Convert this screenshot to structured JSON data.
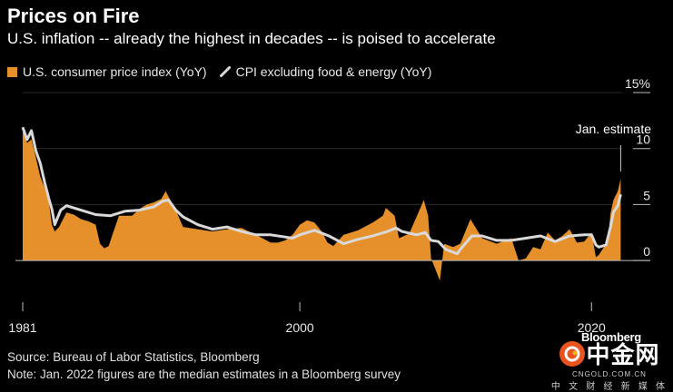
{
  "title": "Prices on Fire",
  "subtitle": "U.S. inflation -- already the highest in decades -- is poised to accelerate",
  "source": "Source: Bureau of Labor Statistics, Bloomberg",
  "note": "Note: Jan. 2022 figures are the median estimates in a Bloomberg survey",
  "bloomberg_mark": "Bloomberg",
  "watermark": {
    "logo_text": "中金网",
    "url": "CNGOLD.COM.CN",
    "tagline": "中 文 财 经 新 媒 体"
  },
  "colors": {
    "headline_cpi": "#e5902a",
    "core_cpi": "#d9d9d9",
    "background": "#000000",
    "axis": "#bbbbbb"
  },
  "chart_data": {
    "type": "area",
    "title": "Prices on Fire",
    "legend_placement": "top-left",
    "grid": true,
    "xlim": [
      1981,
      2022.1
    ],
    "ylim": [
      -2.5,
      15
    ],
    "x_ticks": [
      1981,
      2000,
      2020
    ],
    "x_tick_labels": [
      "1981",
      "2000",
      "2020"
    ],
    "y_ticks": [
      0,
      5,
      10,
      15
    ],
    "y_tick_labels": [
      "0",
      "5",
      "10",
      "15%"
    ],
    "annotation": {
      "label": "Jan. estimate",
      "x": 2022.0,
      "y": 7.3
    },
    "series": [
      {
        "name": "U.S. consumer price index (YoY)",
        "kind": "area",
        "x": [
          1981.0,
          1981.3,
          1981.6,
          1981.9,
          1982.2,
          1982.5,
          1982.8,
          1983.0,
          1983.2,
          1983.5,
          1984.0,
          1984.5,
          1985.0,
          1985.5,
          1986.0,
          1986.3,
          1986.6,
          1986.9,
          1987.2,
          1987.6,
          1988.0,
          1988.5,
          1989.0,
          1989.5,
          1990.0,
          1990.5,
          1990.8,
          1991.0,
          1991.5,
          1992.0,
          1993.0,
          1994.0,
          1995.0,
          1996.0,
          1997.0,
          1998.0,
          1998.5,
          1999.0,
          1999.5,
          2000.0,
          2000.5,
          2001.0,
          2001.5,
          2001.9,
          2002.3,
          2003.0,
          2004.0,
          2005.0,
          2005.7,
          2005.9,
          2006.5,
          2006.8,
          2007.5,
          2008.0,
          2008.5,
          2008.8,
          2009.0,
          2009.3,
          2009.6,
          2009.9,
          2010.5,
          2011.0,
          2011.7,
          2012.5,
          2013.5,
          2014.5,
          2015.0,
          2015.5,
          2016.0,
          2016.5,
          2017.0,
          2017.5,
          2018.0,
          2018.5,
          2019.0,
          2019.5,
          2020.0,
          2020.3,
          2020.5,
          2020.9,
          2021.1,
          2021.3,
          2021.5,
          2021.8,
          2022.0
        ],
        "y": [
          11.8,
          10.5,
          10.8,
          9.2,
          7.5,
          6.5,
          5.2,
          3.2,
          2.6,
          3.0,
          4.3,
          4.1,
          3.7,
          3.5,
          3.2,
          1.5,
          1.1,
          1.3,
          2.5,
          4.0,
          4.0,
          4.0,
          4.6,
          5.0,
          5.2,
          5.5,
          6.2,
          5.7,
          4.5,
          3.0,
          2.8,
          2.6,
          2.8,
          2.9,
          2.3,
          1.6,
          1.6,
          1.8,
          2.3,
          3.2,
          3.6,
          3.4,
          2.6,
          1.6,
          1.3,
          2.3,
          2.7,
          3.4,
          4.0,
          4.7,
          4.0,
          2.0,
          2.4,
          3.9,
          5.4,
          4.0,
          0.2,
          -0.8,
          -1.8,
          1.5,
          1.2,
          1.5,
          3.7,
          2.0,
          1.5,
          2.0,
          0.0,
          0.2,
          1.2,
          1.0,
          2.5,
          1.8,
          2.2,
          2.8,
          1.6,
          1.7,
          2.5,
          0.3,
          0.5,
          1.3,
          1.5,
          4.2,
          5.4,
          6.2,
          7.3
        ]
      },
      {
        "name": "CPI excluding food & energy (YoY)",
        "kind": "line",
        "x": [
          1981.0,
          1981.3,
          1981.6,
          1981.9,
          1982.2,
          1982.5,
          1982.8,
          1983.0,
          1983.2,
          1983.6,
          1984.0,
          1985.0,
          1986.0,
          1987.0,
          1988.0,
          1989.0,
          1990.0,
          1990.6,
          1991.0,
          1991.5,
          1992.0,
          1993.0,
          1994.0,
          1995.0,
          1996.0,
          1997.0,
          1998.0,
          1999.0,
          1999.5,
          2000.0,
          2001.0,
          2002.0,
          2003.0,
          2004.0,
          2005.0,
          2006.0,
          2006.6,
          2007.0,
          2008.0,
          2008.6,
          2009.0,
          2009.5,
          2010.0,
          2010.8,
          2011.0,
          2011.8,
          2012.5,
          2013.5,
          2014.5,
          2015.5,
          2016.5,
          2017.5,
          2018.5,
          2019.5,
          2020.0,
          2020.3,
          2020.5,
          2021.0,
          2021.3,
          2021.5,
          2021.8,
          2022.0
        ],
        "y": [
          11.9,
          10.8,
          11.6,
          9.8,
          8.7,
          7.0,
          5.5,
          4.6,
          3.2,
          4.5,
          4.9,
          4.5,
          4.1,
          4.0,
          4.4,
          4.5,
          4.8,
          5.3,
          5.4,
          4.5,
          3.9,
          3.2,
          2.8,
          3.0,
          2.6,
          2.3,
          2.3,
          2.1,
          2.0,
          2.3,
          2.7,
          2.2,
          1.5,
          1.9,
          2.2,
          2.6,
          2.9,
          2.6,
          2.3,
          2.5,
          1.8,
          1.7,
          1.0,
          0.6,
          1.0,
          2.2,
          2.2,
          1.8,
          1.8,
          2.0,
          2.2,
          1.7,
          2.2,
          2.3,
          2.3,
          1.4,
          1.2,
          1.4,
          3.0,
          4.3,
          4.9,
          5.9
        ]
      }
    ]
  }
}
